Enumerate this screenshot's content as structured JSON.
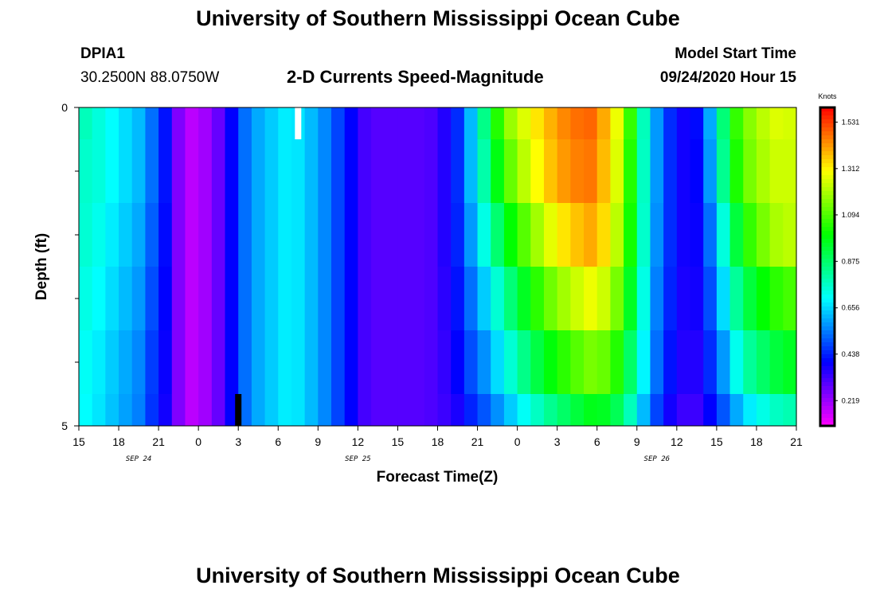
{
  "header": {
    "title": "University of Southern Mississippi Ocean Cube",
    "station_id": "DPIA1",
    "station_coords": "30.2500N 88.0750W",
    "plot_title": "2-D Currents Speed-Magnitude",
    "model_start_label": "Model Start Time",
    "model_start_value": "09/24/2020 Hour 15"
  },
  "footer": {
    "title": "University of Southern Mississippi Ocean Cube"
  },
  "chart_data": {
    "type": "heatmap",
    "title": "2-D Currents Speed-Magnitude",
    "xlabel": "Forecast Time(Z)",
    "ylabel": "Depth (ft)",
    "x_range_hours": [
      0,
      54
    ],
    "x_start_hour_of_day": 15,
    "xticks_every_hours": 3,
    "x_tick_labels": [
      "15",
      "18",
      "21",
      "0",
      "3",
      "6",
      "9",
      "12",
      "15",
      "18",
      "21",
      "0",
      "3",
      "6",
      "9",
      "12",
      "15",
      "18",
      "21"
    ],
    "date_labels": [
      {
        "text": "SEP 24",
        "hour": 4.5
      },
      {
        "text": "SEP 25",
        "hour": 21
      },
      {
        "text": "SEP 26",
        "hour": 43.5
      }
    ],
    "y_range": [
      0,
      5
    ],
    "y_tick_labels": [
      {
        "value": 0,
        "text": "0"
      },
      {
        "value": 5,
        "text": "5"
      }
    ],
    "y_minor_ticks": [
      1,
      2,
      3,
      4
    ],
    "depth_layers": [
      0,
      0.5,
      1.5,
      2.5,
      3.5,
      4.5
    ],
    "colorbar": {
      "unit": "Knots",
      "min": 0.1,
      "max": 1.6,
      "tick_labels": [
        "1.531",
        "1.312",
        "1.094",
        "0.875",
        "0.656",
        "0.438",
        "0.219"
      ],
      "tick_values": [
        1.531,
        1.312,
        1.094,
        0.875,
        0.656,
        0.438,
        0.219
      ]
    },
    "speed_hourly_knots": [
      [
        0.78,
        0.74,
        0.7,
        0.66,
        0.62,
        0.53,
        0.42,
        0.25,
        0.18,
        0.21,
        0.28,
        0.4,
        0.53,
        0.6,
        0.64,
        0.68,
        0.67,
        0.62,
        0.56,
        0.48,
        0.4,
        0.32,
        0.3,
        0.3,
        0.3,
        0.3,
        0.31,
        0.36,
        0.45,
        0.62,
        0.84,
        1.04,
        1.18,
        1.26,
        1.33,
        1.39,
        1.44,
        1.47,
        1.48,
        1.4,
        1.28,
        1.06,
        0.78,
        0.58,
        0.45,
        0.38,
        0.41,
        0.6,
        0.86,
        1.06,
        1.16,
        1.22,
        1.26,
        1.25,
        1.2
      ],
      [
        0.76,
        0.74,
        0.7,
        0.66,
        0.62,
        0.53,
        0.42,
        0.25,
        0.18,
        0.21,
        0.28,
        0.4,
        0.53,
        0.6,
        0.64,
        0.68,
        0.67,
        0.62,
        0.56,
        0.48,
        0.4,
        0.32,
        0.3,
        0.3,
        0.3,
        0.3,
        0.31,
        0.36,
        0.45,
        0.62,
        0.8,
        0.98,
        1.12,
        1.22,
        1.3,
        1.37,
        1.42,
        1.45,
        1.46,
        1.38,
        1.26,
        1.04,
        0.77,
        0.58,
        0.45,
        0.38,
        0.4,
        0.58,
        0.83,
        1.03,
        1.14,
        1.2,
        1.24,
        1.24,
        1.19
      ],
      [
        0.75,
        0.72,
        0.68,
        0.64,
        0.6,
        0.51,
        0.41,
        0.25,
        0.18,
        0.21,
        0.28,
        0.4,
        0.53,
        0.6,
        0.64,
        0.68,
        0.67,
        0.62,
        0.56,
        0.48,
        0.4,
        0.32,
        0.3,
        0.3,
        0.3,
        0.3,
        0.31,
        0.36,
        0.44,
        0.58,
        0.73,
        0.87,
        1.0,
        1.1,
        1.19,
        1.27,
        1.33,
        1.37,
        1.4,
        1.34,
        1.22,
        1.02,
        0.76,
        0.57,
        0.45,
        0.38,
        0.39,
        0.53,
        0.74,
        0.93,
        1.06,
        1.14,
        1.2,
        1.22,
        1.18
      ],
      [
        0.73,
        0.7,
        0.66,
        0.62,
        0.58,
        0.49,
        0.4,
        0.25,
        0.18,
        0.21,
        0.28,
        0.4,
        0.53,
        0.6,
        0.64,
        0.68,
        0.67,
        0.62,
        0.56,
        0.48,
        0.4,
        0.32,
        0.3,
        0.3,
        0.3,
        0.3,
        0.31,
        0.35,
        0.42,
        0.53,
        0.64,
        0.75,
        0.86,
        0.96,
        1.05,
        1.13,
        1.19,
        1.24,
        1.28,
        1.24,
        1.14,
        0.96,
        0.73,
        0.55,
        0.44,
        0.37,
        0.38,
        0.49,
        0.66,
        0.82,
        0.93,
        1.0,
        1.05,
        1.08,
        1.06
      ],
      [
        0.71,
        0.68,
        0.64,
        0.6,
        0.56,
        0.47,
        0.39,
        0.25,
        0.18,
        0.21,
        0.28,
        0.4,
        0.53,
        0.6,
        0.64,
        0.68,
        0.67,
        0.62,
        0.56,
        0.48,
        0.4,
        0.32,
        0.3,
        0.3,
        0.3,
        0.3,
        0.31,
        0.34,
        0.4,
        0.49,
        0.57,
        0.66,
        0.75,
        0.84,
        0.92,
        0.99,
        1.05,
        1.1,
        1.14,
        1.12,
        1.04,
        0.88,
        0.69,
        0.53,
        0.42,
        0.36,
        0.36,
        0.45,
        0.58,
        0.72,
        0.82,
        0.88,
        0.93,
        0.96,
        0.95
      ],
      [
        0.7,
        0.67,
        0.63,
        0.59,
        0.55,
        0.46,
        0.38,
        0.25,
        0.18,
        0.21,
        0.28,
        0.4,
        0.53,
        0.6,
        0.64,
        0.68,
        0.67,
        0.62,
        0.56,
        0.48,
        0.4,
        0.32,
        0.3,
        0.3,
        0.3,
        0.3,
        0.31,
        0.33,
        0.37,
        0.44,
        0.5,
        0.57,
        0.64,
        0.71,
        0.77,
        0.83,
        0.88,
        0.93,
        0.97,
        0.96,
        0.9,
        0.78,
        0.62,
        0.48,
        0.38,
        0.33,
        0.33,
        0.4,
        0.5,
        0.6,
        0.68,
        0.73,
        0.77,
        0.79,
        0.78
      ]
    ],
    "markers": [
      {
        "name": "surface-marker",
        "hour": 16.5,
        "color": "#ffffff",
        "depth_from": 0,
        "depth_to": 0.5
      },
      {
        "name": "bottom-marker",
        "hour": 12,
        "color": "#000000",
        "depth_from": 4.5,
        "depth_to": 5
      }
    ]
  }
}
